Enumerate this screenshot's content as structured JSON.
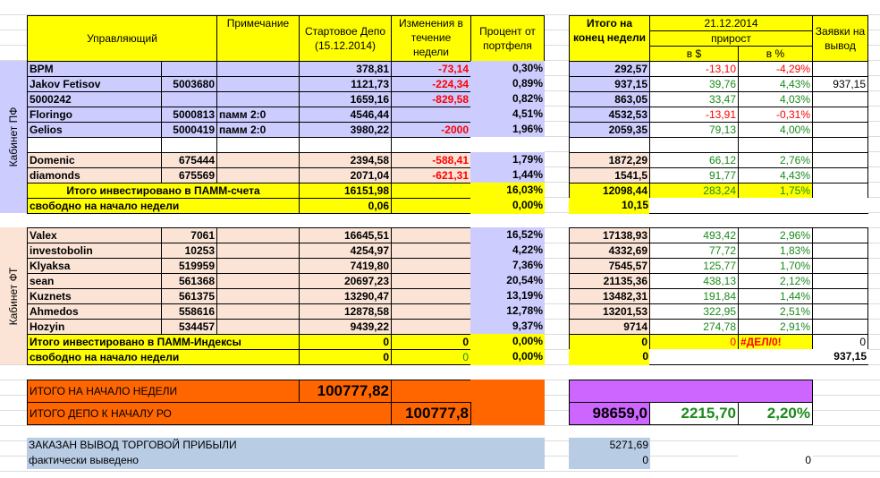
{
  "header": {
    "manager": "Управляющий",
    "note": "Примечание",
    "start": "Стартовое Депо (15.12.2014)",
    "change": "Изменения в течение недели",
    "percent": "Процент от портфеля",
    "end": "Итого на конец недели",
    "date": "21.12.2014",
    "growth": "прирост",
    "usd": "в $",
    "pct": "в %",
    "withdraw": "Заявки на вывод"
  },
  "pf": {
    "label": "Кабинет ПФ",
    "rows": [
      {
        "name": "BPM",
        "id": "",
        "note": "",
        "start": "378,81",
        "change": "-73,14",
        "percent": "0,30%",
        "end": "292,57",
        "usd": "-13,10",
        "pct": "-4,29%",
        "withdraw": "",
        "bg": "l"
      },
      {
        "name": "Jakov Fetisov",
        "id": "5003680",
        "note": "",
        "start": "1121,73",
        "change": "-224,34",
        "percent": "0,89%",
        "end": "937,15",
        "usd": "39,76",
        "pct": "4,43%",
        "withdraw": "937,15",
        "bg": "l"
      },
      {
        "name": "5000242",
        "id": "",
        "note": "",
        "start": "1659,16",
        "change": "-829,58",
        "percent": "0,82%",
        "end": "863,05",
        "usd": "33,47",
        "pct": "4,03%",
        "withdraw": "",
        "bg": "l"
      },
      {
        "name": "Floringo",
        "id": "5000813",
        "note": "памм 2:0",
        "start": "4546,44",
        "change": "",
        "percent": "4,51%",
        "end": "4532,53",
        "usd": "-13,91",
        "pct": "-0,31%",
        "withdraw": "",
        "bg": "l"
      },
      {
        "name": "Gelios",
        "id": "5000419",
        "note": "памм 2:0",
        "start": "3980,22",
        "change": "-2000",
        "percent": "1,96%",
        "end": "2059,35",
        "usd": "79,13",
        "pct": "4,00%",
        "withdraw": "",
        "bg": "l"
      },
      {
        "name": "",
        "id": "",
        "note": "",
        "start": "",
        "change": "",
        "percent": "",
        "end": "",
        "usd": "",
        "pct": "",
        "withdraw": "",
        "bg": "w"
      },
      {
        "name": "Domenic",
        "id": "675444",
        "note": "",
        "start": "2394,58",
        "change": "-588,41",
        "percent": "1,79%",
        "end": "1872,29",
        "usd": "66,12",
        "pct": "2,76%",
        "withdraw": "",
        "bg": "p"
      },
      {
        "name": "diamonds",
        "id": "675569",
        "note": "",
        "start": "2071,04",
        "change": "-621,31",
        "percent": "1,44%",
        "end": "1541,5",
        "usd": "91,77",
        "pct": "4,43%",
        "withdraw": "",
        "bg": "p"
      }
    ],
    "total": {
      "label": "Итого инвестировано в ПАММ-счета",
      "start": "16151,98",
      "change": "",
      "percent": "16,03%",
      "end": "12098,44",
      "usd": "283,24",
      "pct": "1,75%",
      "withdraw": ""
    },
    "free": {
      "label": "свободно на начало недели",
      "start": "0,06",
      "change": "",
      "percent": "0,00%",
      "end": "10,15",
      "withdraw": ""
    }
  },
  "ft": {
    "label": "Кабинет ФТ",
    "rows": [
      {
        "name": "Valex",
        "id": "7061",
        "note": "",
        "start": "16645,51",
        "change": "",
        "percent": "16,52%",
        "end": "17138,93",
        "usd": "493,42",
        "pct": "2,96%",
        "withdraw": "",
        "bg": "p"
      },
      {
        "name": "investobolin",
        "id": "10253",
        "note": "",
        "start": "4254,97",
        "change": "",
        "percent": "4,22%",
        "end": "4332,69",
        "usd": "77,72",
        "pct": "1,83%",
        "withdraw": "",
        "bg": "p"
      },
      {
        "name": "Klyaksa",
        "id": "519959",
        "note": "",
        "start": "7419,80",
        "change": "",
        "percent": "7,36%",
        "end": "7545,57",
        "usd": "125,77",
        "pct": "1,70%",
        "withdraw": "",
        "bg": "p"
      },
      {
        "name": "sean",
        "id": "561368",
        "note": "",
        "start": "20697,23",
        "change": "",
        "percent": "20,54%",
        "end": "21135,36",
        "usd": "438,13",
        "pct": "2,12%",
        "withdraw": "",
        "bg": "p"
      },
      {
        "name": "Kuznets",
        "id": "561375",
        "note": "",
        "start": "13290,47",
        "change": "",
        "percent": "13,19%",
        "end": "13482,31",
        "usd": "191,84",
        "pct": "1,44%",
        "withdraw": "",
        "bg": "p"
      },
      {
        "name": "Ahmedos",
        "id": "558616",
        "note": "",
        "start": "12878,58",
        "change": "",
        "percent": "12,78%",
        "end": "13201,53",
        "usd": "322,95",
        "pct": "2,51%",
        "withdraw": "",
        "bg": "p"
      },
      {
        "name": "Hozyin",
        "id": "534457",
        "note": "",
        "start": "9439,22",
        "change": "",
        "percent": "9,37%",
        "end": "9714",
        "usd": "274,78",
        "pct": "2,91%",
        "withdraw": "",
        "bg": "p"
      }
    ],
    "total": {
      "label": "Итого инвестировано в ПАММ-Индексы",
      "start": "0",
      "change": "0",
      "percent": "0,00%",
      "end": "0",
      "usd": "0",
      "pct": "#ДЕЛ/0!",
      "withdraw": "0"
    },
    "free": {
      "label": "свободно на начало недели",
      "start": "0",
      "change": "0",
      "percent": "0,00%",
      "end": "0",
      "withdraw": "937,15"
    }
  },
  "summary": {
    "week_start_label": "ИТОГО НА НАЧАЛО НЕДЕЛИ",
    "week_start_value": "100777,82",
    "depo_label": "ИТОГО ДЕПО К НАЧАЛУ РО",
    "depo_value": "100777,8",
    "total_end": "98659,0",
    "total_usd": "2215,70",
    "total_pct": "2,20%"
  },
  "withdrawal": {
    "ordered_label": "ЗАКАЗАН ВЫВОД ТОРГОВОЙ ПРИБЫЛИ",
    "ordered_value": "5271,69",
    "actual_label": "фактически выведено",
    "actual_value": "0",
    "actual_extra": "0"
  }
}
